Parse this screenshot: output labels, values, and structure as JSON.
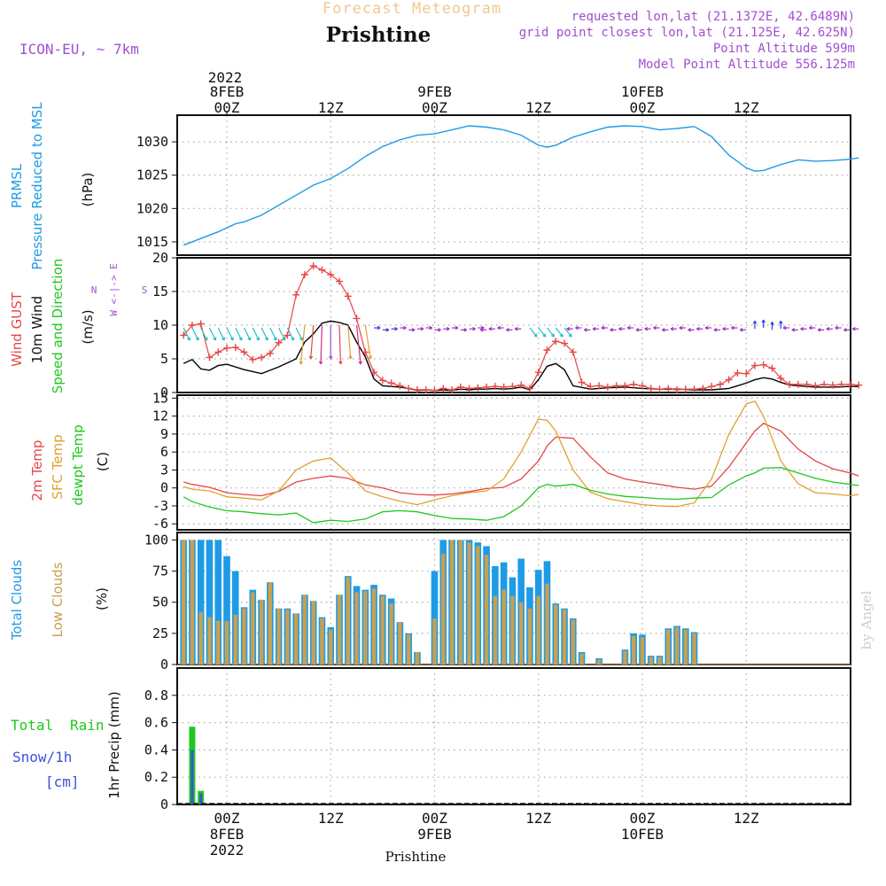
{
  "header": {
    "top_title": "Forecast Meteogram",
    "location": "Prishtine",
    "model": "ICON-EU,  ~ 7km",
    "requested": "requested lon,lat (21.1372E, 42.6489N)",
    "grid_point": "grid point closest lon,lat (21.125E, 42.625N)",
    "point_altitude": "Point Altitude 599m",
    "model_altitude": "Model Point Altitude 556.125m"
  },
  "footer": {
    "location": "Prishtine",
    "credit": "by Angel"
  },
  "colors": {
    "pressure": "#1e9be6",
    "gust": "#e64646",
    "wind": "#000000",
    "t2m": "#e64646",
    "tsfc": "#e0a030",
    "dewpt": "#20c820",
    "total_clouds": "#1e9be6",
    "low_clouds": "#c8a050",
    "rain": "#20c820",
    "snow": "#3c50dc",
    "purple": "#a050d0"
  },
  "time_axis": {
    "top_year": "2022",
    "top_labels": [
      {
        "h": 0,
        "lines": [
          "8FEB",
          "00Z"
        ]
      },
      {
        "h": 12,
        "lines": [
          "12Z"
        ]
      },
      {
        "h": 24,
        "lines": [
          "9FEB",
          "00Z"
        ]
      },
      {
        "h": 36,
        "lines": [
          "12Z"
        ]
      },
      {
        "h": 48,
        "lines": [
          "10FEB",
          "00Z"
        ]
      },
      {
        "h": 60,
        "lines": [
          "12Z"
        ]
      }
    ],
    "bottom_labels": [
      {
        "h": 0,
        "lines": [
          "00Z",
          "8FEB",
          "2022"
        ]
      },
      {
        "h": 12,
        "lines": [
          "12Z"
        ]
      },
      {
        "h": 24,
        "lines": [
          "00Z",
          "9FEB"
        ]
      },
      {
        "h": 36,
        "lines": [
          "12Z"
        ]
      },
      {
        "h": 48,
        "lines": [
          "00Z",
          "10FEB"
        ]
      },
      {
        "h": 60,
        "lines": [
          "12Z"
        ]
      }
    ]
  },
  "panel_labels": {
    "pressure": {
      "line1": "PRMSL",
      "line2": "Pressure Reduced to MSL",
      "unit": "(hPa)"
    },
    "wind": {
      "gust": "Wind GUST",
      "wind10": "10m Wind",
      "speed_dir": "Speed and Direction",
      "unit": "(m/s)",
      "compass_we": "W <-|-> E",
      "compass_n": "N",
      "compass_s": "S"
    },
    "temp": {
      "t2m": "2m Temp",
      "sfc": "SFC Temp",
      "dewpt": "dewpt Temp",
      "unit": "(C)"
    },
    "clouds": {
      "total": "Total Clouds",
      "low": "Low Clouds",
      "unit": "(%)"
    },
    "precip": {
      "total": "Total",
      "rain": "Rain",
      "snow": "Snow/1h",
      "cm": "[cm]",
      "axis": "1hr Precip (mm)"
    }
  },
  "chart_data": [
    {
      "type": "line",
      "name": "pressure",
      "title": "PRMSL Pressure Reduced to MSL",
      "ylabel": "(hPa)",
      "ylim": [
        1013,
        1034
      ],
      "yticks": [
        1015,
        1020,
        1025,
        1030
      ],
      "series": [
        {
          "name": "PRMSL",
          "x": [
            -5,
            -3,
            -1,
            1,
            2,
            4,
            6,
            8,
            10,
            12,
            14,
            16,
            18,
            20,
            22,
            24,
            26,
            28,
            30,
            32,
            34,
            36,
            37,
            38,
            40,
            42,
            44,
            46,
            48,
            50,
            52,
            54,
            56,
            58,
            60,
            61,
            62,
            64,
            66,
            68,
            70,
            72,
            73
          ],
          "values": [
            1014.5,
            1015.5,
            1016.5,
            1017.7,
            1018,
            1019,
            1020.5,
            1022,
            1023.5,
            1024.5,
            1026,
            1027.8,
            1029.3,
            1030.3,
            1031,
            1031.2,
            1031.8,
            1032.4,
            1032.2,
            1031.8,
            1031.0,
            1029.5,
            1029.2,
            1029.5,
            1030.7,
            1031.5,
            1032.2,
            1032.4,
            1032.3,
            1031.8,
            1032.0,
            1032.3,
            1030.8,
            1028,
            1026.1,
            1025.6,
            1025.7,
            1026.6,
            1027.3,
            1027.1,
            1027.2,
            1027.4,
            1027.6
          ]
        }
      ]
    },
    {
      "type": "line",
      "name": "wind",
      "title": "Wind GUST / 10m Wind Speed and Direction",
      "ylabel": "(m/s)",
      "ylim": [
        0,
        20
      ],
      "yticks": [
        0,
        5,
        10,
        15,
        20
      ],
      "series": [
        {
          "name": "Wind GUST",
          "x": [
            -5,
            -4,
            -3,
            -2,
            -1,
            0,
            1,
            2,
            3,
            4,
            5,
            6,
            7,
            8,
            9,
            10,
            11,
            12,
            13,
            14,
            15,
            16,
            17,
            18,
            19,
            20,
            21,
            22,
            23,
            24,
            25,
            26,
            27,
            28,
            29,
            30,
            31,
            32,
            33,
            34,
            35,
            36,
            37,
            38,
            39,
            40,
            41,
            42,
            43,
            44,
            45,
            46,
            47,
            48,
            49,
            50,
            51,
            52,
            53,
            54,
            55,
            56,
            57,
            58,
            59,
            60,
            61,
            62,
            63,
            64,
            65,
            66,
            67,
            68,
            69,
            70,
            71,
            72,
            73
          ],
          "values": [
            8.5,
            10.0,
            10.2,
            5.2,
            6.0,
            6.6,
            6.7,
            6.0,
            4.9,
            5.2,
            5.8,
            7.4,
            8.5,
            14.5,
            17.5,
            18.8,
            18.2,
            17.5,
            16.5,
            14.3,
            11.0,
            6.0,
            3.0,
            1.8,
            1.4,
            1.0,
            0.6,
            0.4,
            0.4,
            0.3,
            0.6,
            0.4,
            0.8,
            0.6,
            0.7,
            0.8,
            0.9,
            0.8,
            0.9,
            1.1,
            0.6,
            3.0,
            6.3,
            7.6,
            7.3,
            6.0,
            1.5,
            0.9,
            1.0,
            0.8,
            1.0,
            1.0,
            1.2,
            1.0,
            0.6,
            0.5,
            0.6,
            0.4,
            0.5,
            0.5,
            0.6,
            0.9,
            1.2,
            1.9,
            2.9,
            2.8,
            4.0,
            4.1,
            3.6,
            2.1,
            1.2,
            1.2,
            1.2,
            1.0,
            1.2,
            1.1,
            1.2,
            1.2,
            1.1
          ]
        },
        {
          "name": "10m Wind",
          "x": [
            -5,
            -4,
            -3,
            -2,
            -1,
            0,
            2,
            4,
            6,
            8,
            9,
            10,
            11,
            12,
            13,
            14,
            15,
            16,
            17,
            18,
            19,
            20,
            21,
            22,
            23,
            24,
            25,
            26,
            27,
            28,
            29,
            30,
            31,
            32,
            33,
            34,
            35,
            36,
            37,
            38,
            39,
            40,
            42,
            44,
            46,
            48,
            50,
            52,
            54,
            56,
            58,
            59,
            60,
            61,
            62,
            63,
            64,
            65,
            66,
            68,
            70,
            72,
            73
          ],
          "values": [
            4.3,
            4.9,
            3.5,
            3.3,
            4.0,
            4.2,
            3.4,
            2.8,
            3.8,
            5.0,
            7.5,
            8.7,
            10.3,
            10.6,
            10.4,
            10.0,
            7.5,
            5.3,
            2.0,
            1.0,
            0.9,
            0.8,
            0.6,
            0.3,
            0.4,
            0.3,
            0.4,
            0.3,
            0.5,
            0.4,
            0.5,
            0.5,
            0.6,
            0.5,
            0.6,
            0.8,
            0.4,
            1.9,
            3.9,
            4.3,
            3.4,
            1.0,
            0.5,
            0.7,
            0.8,
            0.6,
            0.5,
            0.5,
            0.4,
            0.4,
            0.6,
            1.0,
            1.4,
            1.9,
            2.2,
            2.0,
            1.5,
            1.1,
            1.0,
            0.8,
            0.8,
            0.9,
            0.9
          ]
        }
      ]
    },
    {
      "type": "line",
      "name": "temperature",
      "title": "2m Temp / SFC Temp / dewpt Temp",
      "ylabel": "(C)",
      "ylim": [
        -7,
        15.5
      ],
      "yticks": [
        -6,
        -3,
        0,
        3,
        6,
        9,
        12,
        15
      ],
      "series": [
        {
          "name": "2m Temp",
          "x": [
            -5,
            -4,
            -2,
            0,
            2,
            4,
            6,
            8,
            10,
            12,
            14,
            16,
            18,
            20,
            22,
            24,
            26,
            28,
            30,
            32,
            34,
            36,
            37,
            38,
            40,
            42,
            44,
            46,
            48,
            50,
            52,
            54,
            56,
            58,
            60,
            61,
            62,
            64,
            66,
            68,
            70,
            72,
            73
          ],
          "values": [
            1.0,
            0.6,
            0.1,
            -0.8,
            -1.1,
            -1.3,
            -0.6,
            1.0,
            1.6,
            2.0,
            1.6,
            0.5,
            0.0,
            -0.8,
            -1.1,
            -1.2,
            -1.0,
            -0.6,
            -0.1,
            0.1,
            1.5,
            4.5,
            7.0,
            8.5,
            8.3,
            5.2,
            2.5,
            1.5,
            1.0,
            0.6,
            0.1,
            -0.2,
            0.3,
            3.5,
            7.5,
            9.5,
            10.8,
            9.5,
            6.5,
            4.5,
            3.2,
            2.5,
            2.0
          ]
        },
        {
          "name": "SFC Temp",
          "x": [
            -5,
            -4,
            -2,
            0,
            2,
            4,
            6,
            8,
            10,
            12,
            14,
            16,
            18,
            20,
            22,
            24,
            26,
            28,
            30,
            32,
            34,
            36,
            37,
            38,
            40,
            42,
            44,
            46,
            48,
            50,
            52,
            54,
            56,
            58,
            60,
            61,
            62,
            64,
            66,
            68,
            70,
            72,
            73
          ],
          "values": [
            0.2,
            -0.2,
            -0.5,
            -1.5,
            -1.7,
            -2.0,
            -0.5,
            3.0,
            4.5,
            5.0,
            2.5,
            -0.5,
            -1.5,
            -2.2,
            -2.8,
            -2.0,
            -1.3,
            -0.8,
            -0.5,
            1.5,
            6.0,
            11.5,
            11.3,
            9.5,
            3.0,
            -0.7,
            -1.8,
            -2.3,
            -2.8,
            -3.0,
            -3.1,
            -2.5,
            1.5,
            9.0,
            14.0,
            14.5,
            12.0,
            4.5,
            0.7,
            -0.8,
            -1.0,
            -1.3,
            -1.1
          ]
        },
        {
          "name": "dewpt Temp",
          "x": [
            -5,
            -4,
            -2,
            0,
            2,
            4,
            6,
            8,
            10,
            12,
            14,
            16,
            18,
            20,
            22,
            24,
            26,
            28,
            30,
            32,
            34,
            36,
            37,
            38,
            40,
            42,
            44,
            46,
            48,
            50,
            52,
            54,
            56,
            58,
            60,
            61,
            62,
            64,
            66,
            68,
            70,
            72,
            73
          ],
          "values": [
            -1.5,
            -2.3,
            -3.2,
            -3.8,
            -4.0,
            -4.3,
            -4.5,
            -4.2,
            -5.8,
            -5.4,
            -5.6,
            -5.2,
            -4.0,
            -3.8,
            -4.0,
            -4.6,
            -5.1,
            -5.2,
            -5.4,
            -4.8,
            -3.0,
            0.0,
            0.6,
            0.3,
            0.6,
            -0.4,
            -1.0,
            -1.4,
            -1.6,
            -1.8,
            -1.9,
            -1.7,
            -1.6,
            0.5,
            2.0,
            2.5,
            3.3,
            3.4,
            2.5,
            1.6,
            1.0,
            0.6,
            0.4
          ]
        }
      ]
    },
    {
      "type": "bar",
      "name": "clouds",
      "title": "Total Clouds / Low Clouds",
      "ylabel": "(%)",
      "ylim": [
        0,
        106
      ],
      "yticks": [
        0,
        25,
        50,
        75,
        100
      ],
      "x": [
        -5,
        -4,
        -3,
        -2,
        -1,
        0,
        1,
        2,
        3,
        4,
        5,
        6,
        7,
        8,
        9,
        10,
        11,
        12,
        13,
        14,
        15,
        16,
        17,
        18,
        19,
        20,
        21,
        22,
        23,
        24,
        25,
        26,
        27,
        28,
        29,
        30,
        31,
        32,
        33,
        34,
        35,
        36,
        37,
        38,
        39,
        40,
        41,
        42,
        43,
        44,
        45,
        46,
        47,
        48,
        49,
        50,
        51,
        52,
        53,
        54,
        55,
        56,
        57,
        58,
        59,
        60,
        61,
        62,
        63,
        64,
        65,
        66,
        67,
        68,
        69,
        70,
        71,
        72,
        73
      ],
      "series": [
        {
          "name": "Total Clouds",
          "values": [
            100,
            100,
            100,
            100,
            100,
            87,
            75,
            46,
            60,
            52,
            66,
            45,
            45,
            41,
            56,
            51,
            38,
            30,
            56,
            71,
            63,
            60,
            64,
            56,
            53,
            34,
            25,
            10,
            0,
            75,
            100,
            100,
            100,
            100,
            98,
            95,
            79,
            82,
            70,
            85,
            62,
            76,
            83,
            49,
            45,
            37,
            10,
            0,
            5,
            0,
            0,
            12,
            25,
            24,
            7,
            7,
            29,
            31,
            29,
            26,
            0,
            0,
            0,
            0,
            0,
            0,
            0,
            0,
            0,
            0,
            0,
            0,
            0,
            0,
            0,
            0,
            0,
            0,
            0
          ]
        },
        {
          "name": "Low Clouds",
          "values": [
            100,
            100,
            42,
            38,
            35,
            35,
            40,
            45,
            58,
            52,
            66,
            45,
            44,
            41,
            56,
            51,
            37,
            28,
            56,
            70,
            58,
            59,
            61,
            55,
            49,
            34,
            24,
            10,
            0,
            37,
            89,
            100,
            100,
            98,
            95,
            88,
            55,
            60,
            55,
            50,
            45,
            55,
            65,
            48,
            44,
            36,
            9,
            0,
            4,
            0,
            0,
            11,
            23,
            22,
            6,
            6,
            28,
            30,
            28,
            25,
            0,
            0,
            0,
            0,
            0,
            0,
            0,
            0,
            0,
            0,
            0,
            0,
            0,
            0,
            0,
            0,
            0,
            0,
            0
          ]
        }
      ]
    },
    {
      "type": "bar",
      "name": "precipitation",
      "title": "Total Rain / Snow/1h",
      "ylabel": "1hr Precip (mm)",
      "ylim": [
        0,
        1.0
      ],
      "yticks": [
        0,
        0.2,
        0.4,
        0.6,
        0.8
      ],
      "x": [
        -4,
        -3
      ],
      "series": [
        {
          "name": "Total Rain",
          "values": [
            0.57,
            0.1
          ]
        },
        {
          "name": "Snow/1h [cm]",
          "values": [
            0.4,
            0.08
          ]
        }
      ]
    }
  ]
}
